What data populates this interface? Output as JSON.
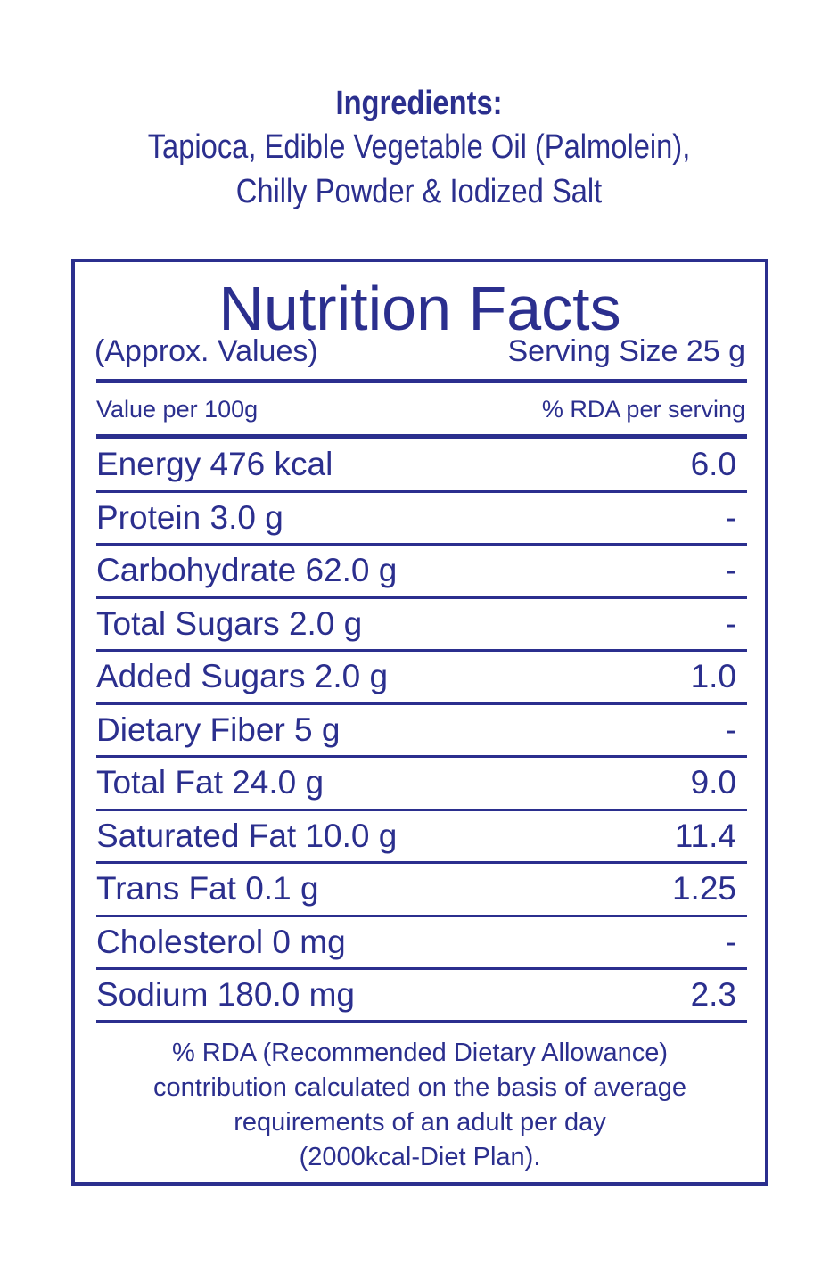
{
  "ingredients": {
    "title": "Ingredients:",
    "lines": [
      "Tapioca, Edible Vegetable Oil (Palmolein),",
      "Chilly Powder & Iodized Salt"
    ]
  },
  "nutrition": {
    "title": "Nutrition Facts",
    "approx_label": "(Approx. Values)",
    "serving_size": "Serving Size 25 g",
    "header_left": "Value per 100g",
    "header_right": "% RDA per serving",
    "rows": [
      {
        "label": "Energy 476 kcal",
        "value": "6.0"
      },
      {
        "label": "Protein 3.0 g",
        "value": "-"
      },
      {
        "label": "Carbohydrate 62.0 g",
        "value": "-"
      },
      {
        "label": "Total Sugars 2.0 g",
        "value": "-"
      },
      {
        "label": "Added Sugars 2.0 g",
        "value": "1.0"
      },
      {
        "label": "Dietary Fiber 5 g",
        "value": "-"
      },
      {
        "label": "Total Fat 24.0 g",
        "value": "9.0"
      },
      {
        "label": "Saturated Fat 10.0 g",
        "value": "11.4"
      },
      {
        "label": "Trans Fat 0.1 g",
        "value": "1.25"
      },
      {
        "label": "Cholesterol 0 mg",
        "value": "-"
      },
      {
        "label": "Sodium 180.0 mg",
        "value": "2.3"
      }
    ],
    "footnote": [
      "% RDA (Recommended Dietary Allowance)",
      "contribution calculated on the basis of average",
      "requirements of an adult per day",
      "(2000kcal-Diet Plan)."
    ]
  },
  "colors": {
    "text": "#2b2f8e",
    "background": "#ffffff"
  }
}
